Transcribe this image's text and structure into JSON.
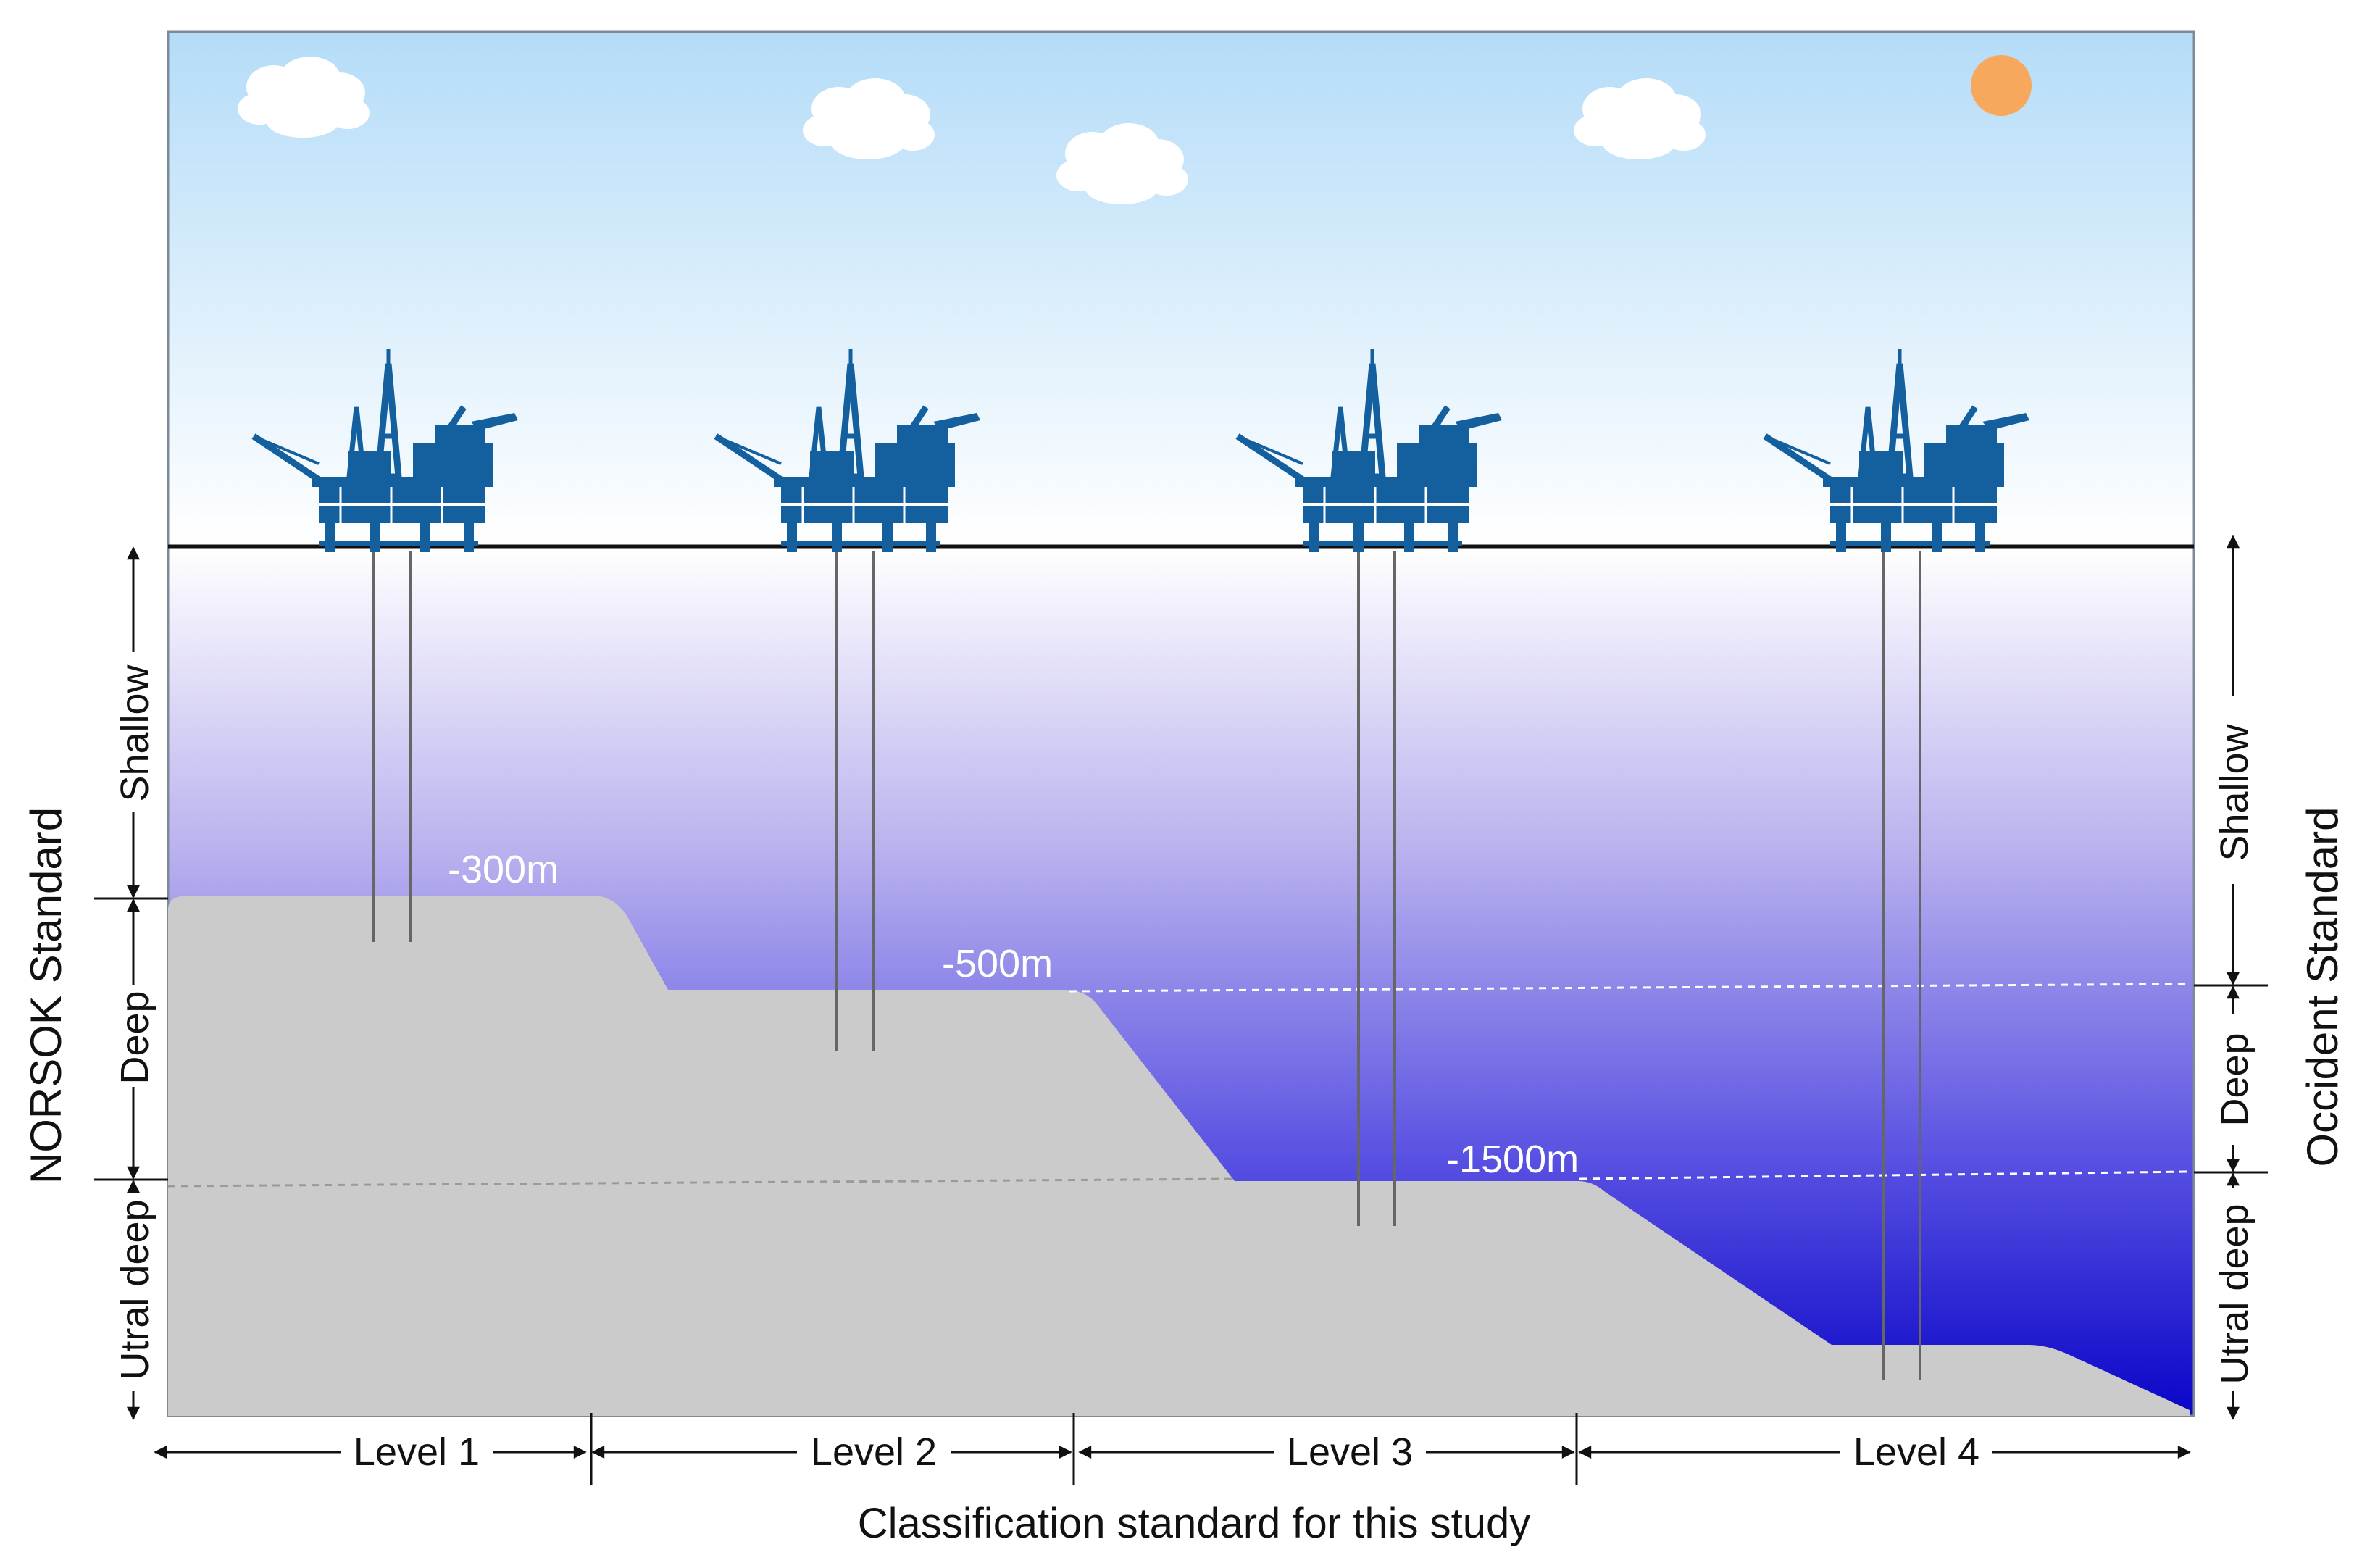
{
  "depth_markers": [
    "-300m",
    "-500m",
    "-1500m"
  ],
  "left_standard": {
    "title": "NORSOK Standard",
    "zones": [
      "Shallow",
      "Deep",
      "Utral deep"
    ]
  },
  "right_standard": {
    "title": "Occident Standard",
    "zones": [
      "Shallow",
      "Deep",
      "Utral deep"
    ]
  },
  "study_standard": {
    "title": "Classification standard for this study",
    "levels": [
      "Level 1",
      "Level 2",
      "Level 3",
      "Level 4"
    ]
  },
  "colors": {
    "sky_top": "#b4dcf8",
    "sky_bottom": "#ffffff",
    "sea_top": "#ffffff",
    "sea_bottom": "#0a05c8",
    "seabed": "#cbcbcb",
    "platform": "#14609e",
    "sun": "#f8a85c"
  },
  "icons": [
    "cloud-icon",
    "sun-icon",
    "oil-platform-icon"
  ]
}
